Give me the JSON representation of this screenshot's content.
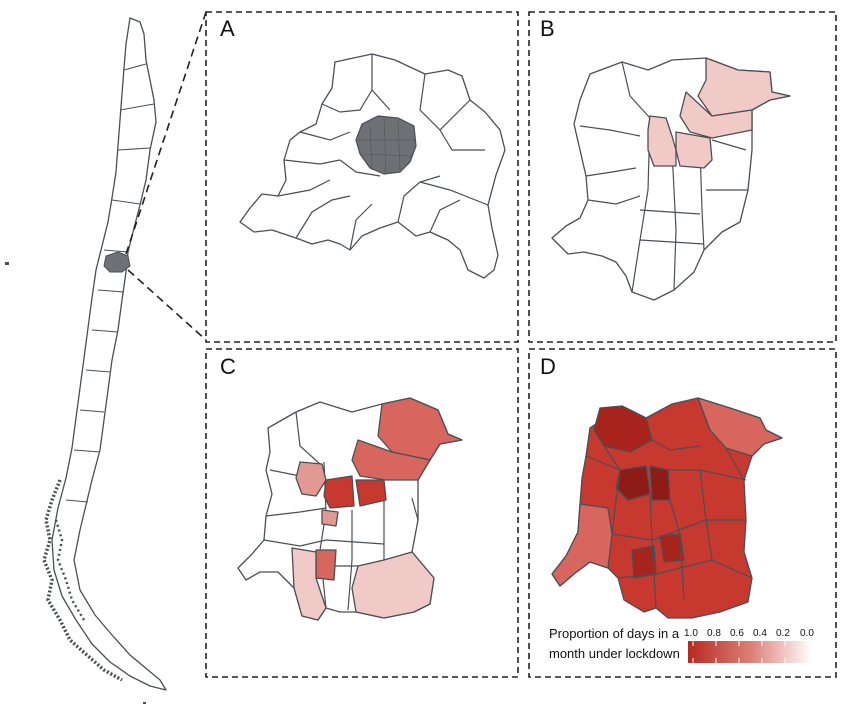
{
  "panels": [
    {
      "id": "A",
      "label": "A"
    },
    {
      "id": "B",
      "label": "B"
    },
    {
      "id": "C",
      "label": "C"
    },
    {
      "id": "D",
      "label": "D"
    }
  ],
  "legend": {
    "title_line1": "Proportion of days in a",
    "title_line2": "month under lockdown",
    "ticks": [
      "1.0",
      "0.8",
      "0.6",
      "0.4",
      "0.2",
      "0.0"
    ],
    "color_high": "#b82920",
    "color_low": "#ffffff"
  },
  "colors": {
    "outline": "#4a4f55",
    "highlight_gray": "#6d7074",
    "scale": {
      "1.0": "#a8231b",
      "0.8": "#c7382f",
      "0.6": "#d6665e",
      "0.4": "#e39993",
      "0.2": "#f1c9c6",
      "0.0": "#ffffff"
    }
  }
}
